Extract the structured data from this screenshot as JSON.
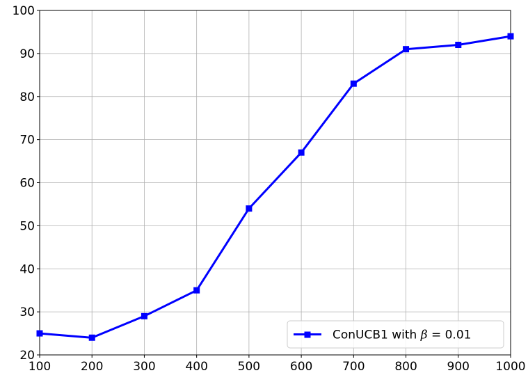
{
  "chart_data": {
    "type": "line",
    "x": [
      100,
      200,
      300,
      400,
      500,
      600,
      700,
      800,
      900,
      1000
    ],
    "series": [
      {
        "name": "ConUCB1 with β = 0.01",
        "name_prefix": "ConUCB1 with ",
        "name_symbol": "β",
        "name_suffix": " = 0.01",
        "values": [
          25,
          24,
          29,
          35,
          54,
          67,
          83,
          91,
          92,
          94
        ],
        "color": "#0000ff",
        "marker": "square"
      }
    ],
    "xlim": [
      100,
      1000
    ],
    "ylim": [
      20,
      100
    ],
    "xticks": [
      100,
      200,
      300,
      400,
      500,
      600,
      700,
      800,
      900,
      1000
    ],
    "yticks": [
      20,
      30,
      40,
      50,
      60,
      70,
      80,
      90,
      100
    ],
    "grid": true,
    "legend": "bottom-right",
    "title": "",
    "xlabel": "",
    "ylabel": ""
  }
}
